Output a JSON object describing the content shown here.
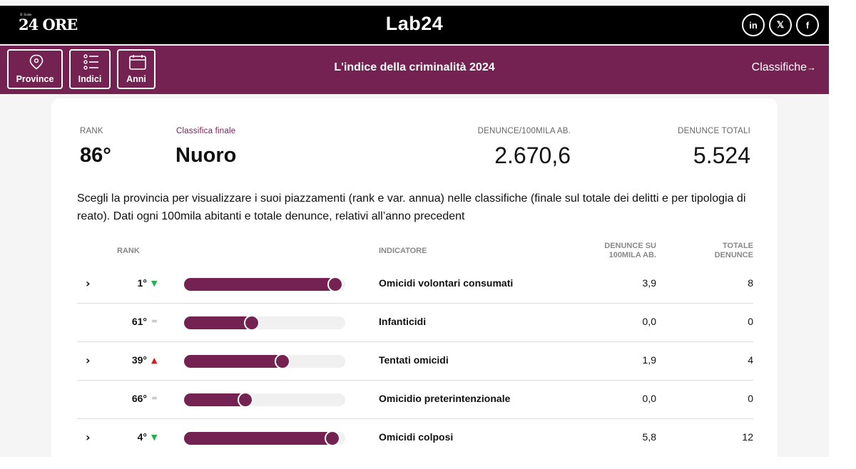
{
  "header": {
    "logo_small": "Il Sole",
    "logo_big": "24 ORE",
    "brand": "Lab24",
    "socials": [
      {
        "icon": "linkedin-icon",
        "label": "in"
      },
      {
        "icon": "x-icon",
        "label": "𝕏"
      },
      {
        "icon": "facebook-icon",
        "label": "f"
      }
    ]
  },
  "nav": {
    "buttons": [
      {
        "icon": "location-pin-icon",
        "label": "Province"
      },
      {
        "icon": "list-icon",
        "label": "Indici"
      },
      {
        "icon": "calendar-icon",
        "label": "Anni"
      }
    ],
    "title": "L'indice della criminalità 2024",
    "link_label": "Classifiche",
    "link_arrow": "→"
  },
  "summary": {
    "rank_label": "RANK",
    "rank_value": "86°",
    "classifica_label": "Classifica finale",
    "province": "Nuoro",
    "denunce100_label": "DENUNCE/100MILA AB.",
    "denunce100_value": "2.670,6",
    "denunce_tot_label": "DENUNCE TOTALI",
    "denunce_tot_value": "5.524"
  },
  "description": "Scegli la provincia per visualizzare i suoi piazzamenti (rank e var. annua) nelle classifiche (finale sul totale dei delitti e per tipologia di reato). Dati ogni 100mila abitanti e totale denunce, relativi all’anno precedent",
  "table": {
    "col_rank": "RANK",
    "col_indicator": "INDICATORE",
    "col_per100_line1": "DENUNCE SU",
    "col_per100_line2": "100MILA AB.",
    "col_total_line1": "TOTALE",
    "col_total_line2": "DENUNCE",
    "rows": [
      {
        "expandable": true,
        "rank": "1°",
        "trend": "down",
        "trend_symbol": "▼",
        "bar_fraction": 0.94,
        "indicator": "Omicidi volontari consumati",
        "per100": "3,9",
        "total": "8"
      },
      {
        "expandable": false,
        "rank": "61°",
        "trend": "same",
        "trend_symbol": "=",
        "bar_fraction": 0.42,
        "indicator": "Infanticidi",
        "per100": "0,0",
        "total": "0"
      },
      {
        "expandable": true,
        "rank": "39°",
        "trend": "up",
        "trend_symbol": "▲",
        "bar_fraction": 0.61,
        "indicator": "Tentati omicidi",
        "per100": "1,9",
        "total": "4"
      },
      {
        "expandable": false,
        "rank": "66°",
        "trend": "same",
        "trend_symbol": "=",
        "bar_fraction": 0.38,
        "indicator": "Omicidio preterintenzionale",
        "per100": "0,0",
        "total": "0"
      },
      {
        "expandable": true,
        "rank": "4°",
        "trend": "down",
        "trend_symbol": "▼",
        "bar_fraction": 0.92,
        "indicator": "Omicidi colposi",
        "per100": "5,8",
        "total": "12"
      }
    ]
  },
  "colors": {
    "brand_purple": "#742252",
    "trend_down": "#1fb14e",
    "trend_up": "#e3161b"
  }
}
